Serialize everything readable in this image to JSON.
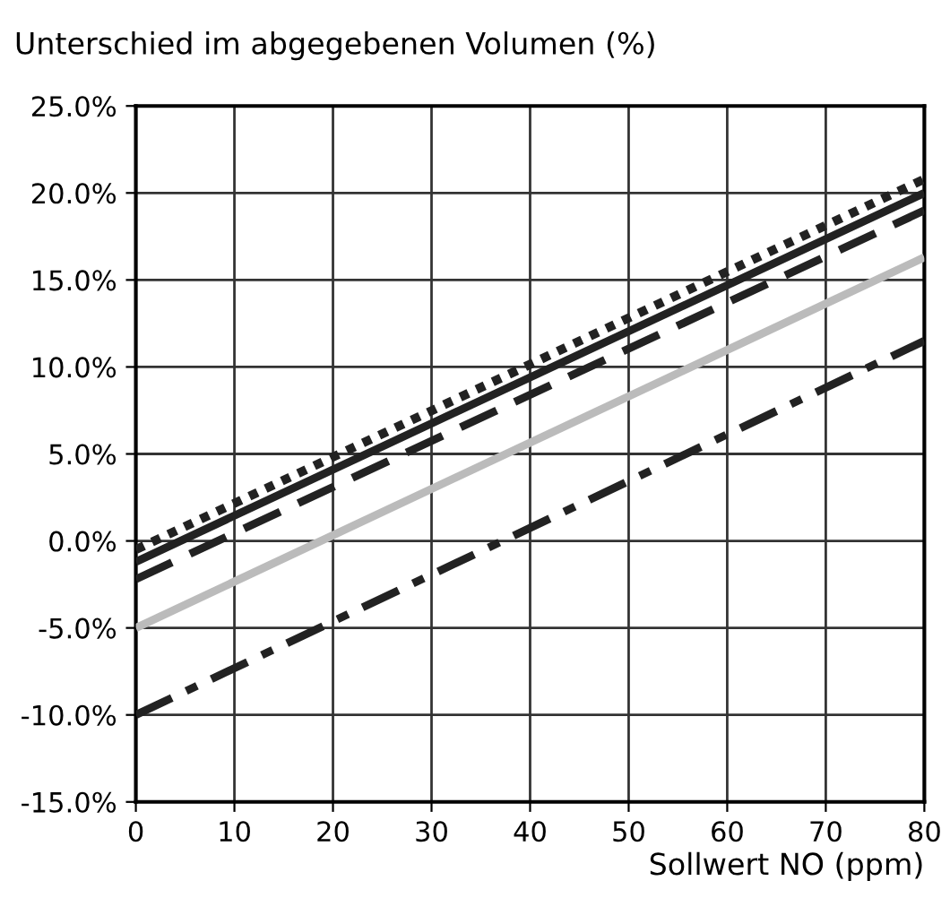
{
  "chart_data": {
    "type": "line",
    "ylabel": "Unterschied im abgegebenen Volumen (%)",
    "xlabel": "Sollwert NO (ppm)",
    "x": [
      0,
      80
    ],
    "series": [
      {
        "color": "#222222",
        "values": [
          -0.5,
          20.8
        ],
        "line_style": "dotted"
      },
      {
        "color": "#222222",
        "values": [
          -1.2,
          20.0
        ],
        "line_style": "solid"
      },
      {
        "color": "#222222",
        "values": [
          -2.2,
          19.0
        ],
        "line_style": "dashed"
      },
      {
        "color": "#bbbbbb",
        "values": [
          -5.0,
          16.3
        ],
        "line_style": "solid"
      },
      {
        "color": "#222222",
        "values": [
          -10.0,
          11.5
        ],
        "line_style": "dashdot"
      }
    ],
    "xlim": [
      0,
      80
    ],
    "xticks": [
      0,
      10,
      20,
      30,
      40,
      50,
      60,
      70,
      80
    ],
    "ylim": [
      -15,
      25
    ],
    "yticks": [
      {
        "value": -15,
        "label": "-15.0%"
      },
      {
        "value": -10,
        "label": "-10.0%"
      },
      {
        "value": -5,
        "label": "-5.0%"
      },
      {
        "value": 0,
        "label": "0.0%"
      },
      {
        "value": 5,
        "label": "5.0%"
      },
      {
        "value": 10,
        "label": "10.0%"
      },
      {
        "value": 15,
        "label": "15.0%"
      },
      {
        "value": 20,
        "label": "20.0%"
      },
      {
        "value": 25,
        "label": "25.0%"
      }
    ],
    "grid": true,
    "legend": false,
    "marker": "none"
  }
}
